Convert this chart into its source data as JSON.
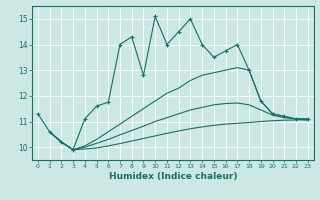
{
  "title": "",
  "xlabel": "Humidex (Indice chaleur)",
  "bg_color": "#cce8e4",
  "grid_color": "#ffffff",
  "line_color": "#1a6e62",
  "xlim": [
    -0.5,
    23.5
  ],
  "ylim": [
    9.5,
    15.5
  ],
  "yticks": [
    10,
    11,
    12,
    13,
    14,
    15
  ],
  "xticks": [
    0,
    1,
    2,
    3,
    4,
    5,
    6,
    7,
    8,
    9,
    10,
    11,
    12,
    13,
    14,
    15,
    16,
    17,
    18,
    19,
    20,
    21,
    22,
    23
  ],
  "line1_x": [
    0,
    1,
    2,
    3,
    4,
    5,
    6,
    7,
    8,
    9,
    10,
    11,
    12,
    13,
    14,
    15,
    16,
    17,
    18,
    19,
    20,
    21,
    22,
    23
  ],
  "line1_y": [
    11.3,
    10.6,
    10.2,
    9.9,
    11.1,
    11.6,
    11.75,
    14.0,
    14.3,
    12.8,
    15.1,
    14.0,
    14.5,
    15.0,
    14.0,
    13.5,
    13.75,
    14.0,
    13.0,
    11.8,
    11.3,
    11.2,
    11.1,
    11.1
  ],
  "line2_x": [
    1,
    2,
    3,
    4,
    5,
    6,
    7,
    8,
    9,
    10,
    11,
    12,
    13,
    14,
    15,
    16,
    17,
    18,
    19,
    20,
    21,
    22,
    23
  ],
  "line2_y": [
    10.6,
    10.2,
    9.9,
    10.05,
    10.3,
    10.6,
    10.9,
    11.2,
    11.5,
    11.8,
    12.1,
    12.3,
    12.6,
    12.8,
    12.9,
    13.0,
    13.1,
    13.0,
    11.8,
    11.3,
    11.2,
    11.1,
    11.1
  ],
  "line3_x": [
    1,
    2,
    3,
    4,
    5,
    6,
    7,
    8,
    9,
    10,
    11,
    12,
    13,
    14,
    15,
    16,
    17,
    18,
    19,
    20,
    21,
    22,
    23
  ],
  "line3_y": [
    10.6,
    10.2,
    9.9,
    10.0,
    10.15,
    10.3,
    10.48,
    10.65,
    10.82,
    11.0,
    11.15,
    11.3,
    11.45,
    11.55,
    11.65,
    11.7,
    11.72,
    11.65,
    11.45,
    11.25,
    11.15,
    11.1,
    11.05
  ],
  "line4_x": [
    1,
    2,
    3,
    4,
    5,
    6,
    7,
    8,
    9,
    10,
    11,
    12,
    13,
    14,
    15,
    16,
    17,
    18,
    19,
    20,
    21,
    22,
    23
  ],
  "line4_y": [
    10.6,
    10.2,
    9.9,
    9.93,
    9.97,
    10.05,
    10.14,
    10.24,
    10.34,
    10.44,
    10.54,
    10.63,
    10.72,
    10.79,
    10.85,
    10.9,
    10.93,
    10.96,
    11.0,
    11.03,
    11.05,
    11.06,
    11.07
  ]
}
